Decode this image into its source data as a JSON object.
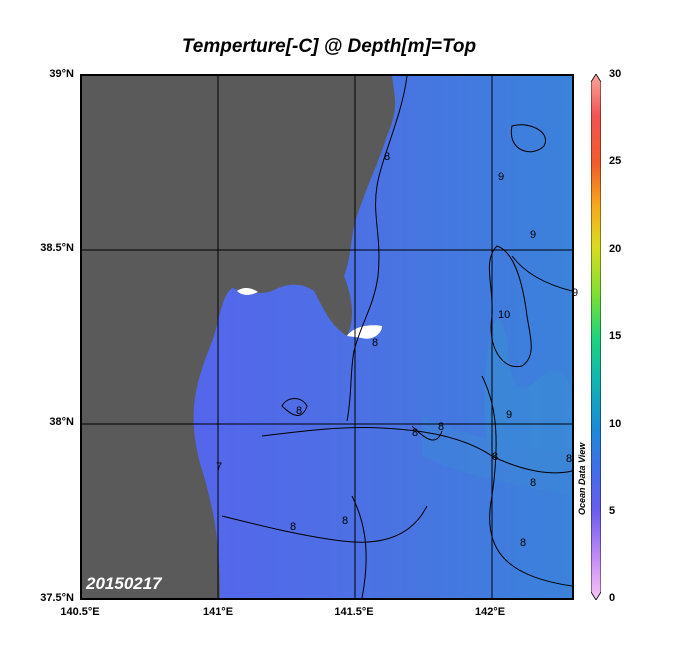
{
  "title": "Temperture[-C] @ Depth[m]=Top",
  "date": "20150217",
  "watermark": "Ocean Data View",
  "lat_labels": [
    "39°N",
    "38.5°N",
    "38°N",
    "37.5°N"
  ],
  "lon_labels": [
    "140.5°E",
    "141°E",
    "141.5°E",
    "142°E"
  ],
  "colorbar": {
    "ticks": [
      "30",
      "25",
      "20",
      "15",
      "10",
      "5",
      "0"
    ],
    "range": [
      0,
      30
    ],
    "colors": [
      "#f9c6f4",
      "#c28cf7",
      "#6a5cf0",
      "#3f6fe8",
      "#1b8cd6",
      "#10b6b0",
      "#1fd47a",
      "#7be033",
      "#d9dc1e",
      "#f7a81c",
      "#f25b2a",
      "#f25350",
      "#f7a6a0"
    ]
  },
  "contour_labels": [
    "7",
    "8",
    "8",
    "8",
    "8",
    "8",
    "8",
    "8",
    "8",
    "8",
    "8",
    "8",
    "9",
    "9",
    "9",
    "9",
    "10"
  ],
  "colors": {
    "land": "#5a5a5a",
    "sea_cool": "#5b64ea",
    "sea_warm": "#3a7fd8"
  }
}
